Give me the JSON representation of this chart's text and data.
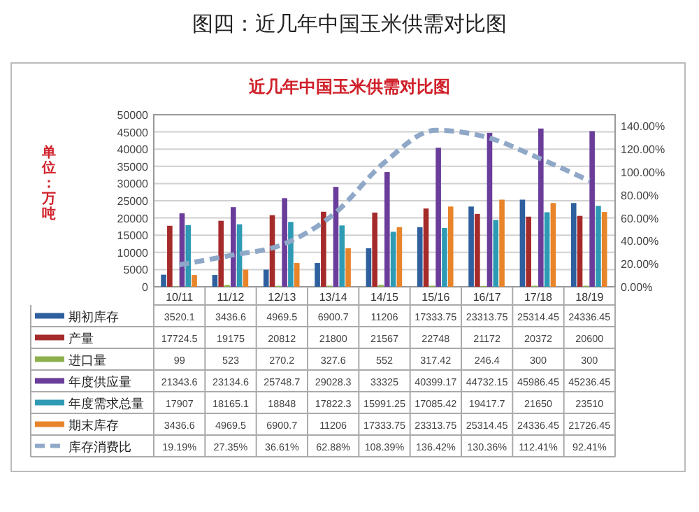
{
  "chart_data": {
    "type": "bar",
    "title": "图四：近几年中国玉米供需对比图",
    "subtitle": "近几年中国玉米供需对比图",
    "ylabel": "单位：万吨",
    "categories": [
      "10/11",
      "11/12",
      "12/13",
      "13/14",
      "14/15",
      "15/16",
      "16/17",
      "17/18",
      "18/19"
    ],
    "series": [
      {
        "name": "期初库存",
        "color": "#2e5f9e",
        "values": [
          3520.1,
          3436.6,
          4969.5,
          6900.7,
          11206,
          17333.75,
          23313.75,
          25314.45,
          24336.45
        ]
      },
      {
        "name": "产量",
        "color": "#a52a2a",
        "values": [
          17724.5,
          19175,
          20812,
          21800,
          21567,
          22748,
          21172,
          20372,
          20600
        ]
      },
      {
        "name": "进口量",
        "color": "#8db04c",
        "values": [
          99,
          523,
          270.2,
          327.6,
          552,
          317.42,
          246.4,
          300,
          300
        ]
      },
      {
        "name": "年度供应量",
        "color": "#6a3d9a",
        "values": [
          21343.6,
          23134.6,
          25748.7,
          29028.3,
          33325,
          40399.17,
          44732.15,
          45986.45,
          45236.45
        ]
      },
      {
        "name": "年度需求总量",
        "color": "#2e9ab4",
        "values": [
          17907,
          18165.1,
          18848,
          17822.3,
          15991.25,
          17085.42,
          19417.7,
          21650,
          23510
        ]
      },
      {
        "name": "期末库存",
        "color": "#e8842a",
        "values": [
          3436.6,
          4969.5,
          6900.7,
          11206,
          17333.75,
          23313.75,
          25314.45,
          24336.45,
          21726.45
        ]
      },
      {
        "name": "库存消费比",
        "type": "line",
        "axis": "y2",
        "color": "#8fa8c8",
        "line_style": "dashed",
        "values": [
          19.19,
          27.35,
          36.61,
          62.88,
          108.39,
          136.42,
          130.36,
          112.41,
          92.41
        ],
        "value_labels": [
          "19.19%",
          "27.35%",
          "36.61%",
          "62.88%",
          "108.39%",
          "136.42%",
          "130.36%",
          "112.41%",
          "92.41%"
        ]
      }
    ],
    "ylim": [
      0,
      50000
    ],
    "yticks": [
      0,
      5000,
      10000,
      15000,
      20000,
      25000,
      30000,
      35000,
      40000,
      45000,
      50000
    ],
    "y2lim": [
      0,
      150
    ],
    "y2ticks": [
      {
        "value": 0,
        "label": "0.00%"
      },
      {
        "value": 20,
        "label": "20.00%"
      },
      {
        "value": 40,
        "label": "40.00%"
      },
      {
        "value": 60,
        "label": "60.00%"
      },
      {
        "value": 80,
        "label": "80.00%"
      },
      {
        "value": 100,
        "label": "100.00%"
      },
      {
        "value": 120,
        "label": "120.00%"
      },
      {
        "value": 140,
        "label": "140.00%"
      }
    ],
    "grid": "y",
    "legend": "bottom",
    "data_labels": true
  }
}
